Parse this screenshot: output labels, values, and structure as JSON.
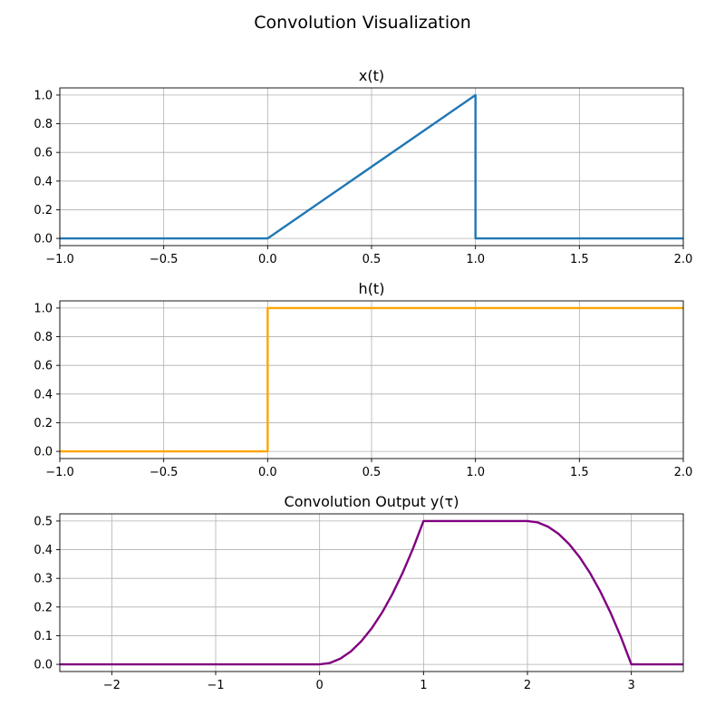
{
  "figure": {
    "title": "Convolution Visualization"
  },
  "chart_data": [
    {
      "type": "line",
      "title": "x(t)",
      "xlabel": "",
      "ylabel": "",
      "xlim": [
        -1.0,
        2.0
      ],
      "ylim": [
        -0.05,
        1.05
      ],
      "xticks": [
        -1.0,
        -0.5,
        0.0,
        0.5,
        1.0,
        1.5,
        2.0
      ],
      "xtick_labels": [
        "−1.0",
        "−0.5",
        "0.0",
        "0.5",
        "1.0",
        "1.5",
        "2.0"
      ],
      "yticks": [
        0.0,
        0.2,
        0.4,
        0.6,
        0.8,
        1.0
      ],
      "ytick_labels": [
        "0.0",
        "0.2",
        "0.4",
        "0.6",
        "0.8",
        "1.0"
      ],
      "grid": true,
      "color": "#1f77b4",
      "series": [
        {
          "x": [
            -1.0,
            0.0,
            1.0,
            1.0,
            2.0
          ],
          "y": [
            0.0,
            0.0,
            1.0,
            0.0,
            0.0
          ]
        }
      ]
    },
    {
      "type": "line",
      "title": "h(t)",
      "xlabel": "",
      "ylabel": "",
      "xlim": [
        -1.0,
        2.0
      ],
      "ylim": [
        -0.05,
        1.05
      ],
      "xticks": [
        -1.0,
        -0.5,
        0.0,
        0.5,
        1.0,
        1.5,
        2.0
      ],
      "xtick_labels": [
        "−1.0",
        "−0.5",
        "0.0",
        "0.5",
        "1.0",
        "1.5",
        "2.0"
      ],
      "yticks": [
        0.0,
        0.2,
        0.4,
        0.6,
        0.8,
        1.0
      ],
      "ytick_labels": [
        "0.0",
        "0.2",
        "0.4",
        "0.6",
        "0.8",
        "1.0"
      ],
      "grid": true,
      "color": "#ffa500",
      "series": [
        {
          "x": [
            -1.0,
            0.0,
            0.0,
            2.0
          ],
          "y": [
            0.0,
            0.0,
            1.0,
            1.0
          ]
        }
      ]
    },
    {
      "type": "line",
      "title": "Convolution Output y(τ)",
      "xlabel": "",
      "ylabel": "",
      "xlim": [
        -2.5,
        3.5
      ],
      "ylim": [
        -0.025,
        0.525
      ],
      "xticks": [
        -2,
        -1,
        0,
        1,
        2,
        3
      ],
      "xtick_labels": [
        "−2",
        "−1",
        "0",
        "1",
        "2",
        "3"
      ],
      "yticks": [
        0.0,
        0.1,
        0.2,
        0.3,
        0.4,
        0.5
      ],
      "ytick_labels": [
        "0.0",
        "0.1",
        "0.2",
        "0.3",
        "0.4",
        "0.5"
      ],
      "grid": true,
      "color": "#800080",
      "series": [
        {
          "x": [
            -2.5,
            0.0,
            0.1,
            0.2,
            0.3,
            0.4,
            0.5,
            0.6,
            0.7,
            0.8,
            0.9,
            1.0,
            2.0,
            2.1,
            2.2,
            2.3,
            2.4,
            2.5,
            2.6,
            2.7,
            2.8,
            2.9,
            3.0,
            3.5
          ],
          "y": [
            0.0,
            0.0,
            0.005,
            0.02,
            0.045,
            0.08,
            0.125,
            0.18,
            0.245,
            0.32,
            0.405,
            0.5,
            0.5,
            0.495,
            0.48,
            0.455,
            0.42,
            0.375,
            0.32,
            0.255,
            0.18,
            0.095,
            0.0,
            0.0
          ]
        }
      ]
    }
  ]
}
